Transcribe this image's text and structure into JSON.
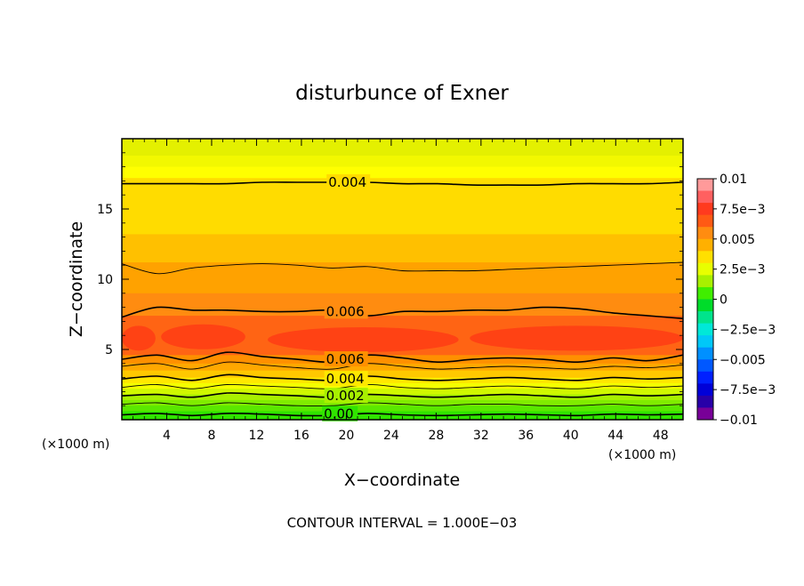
{
  "chart_data": {
    "type": "heatmap",
    "title": "disturbunce of Exner",
    "xlabel": "X−coordinate",
    "ylabel": "Z−coordinate",
    "x_unit": "(×1000 m)",
    "x_unit_right": "(×1000 m)",
    "xlim": [
      0,
      50
    ],
    "ylim": [
      0,
      20
    ],
    "x_ticks": [
      "4",
      "8",
      "12",
      "16",
      "20",
      "24",
      "28",
      "32",
      "36",
      "40",
      "44",
      "48"
    ],
    "x_tick_values": [
      4,
      8,
      12,
      16,
      20,
      24,
      28,
      32,
      36,
      40,
      44,
      48
    ],
    "y_ticks": [
      "5",
      "10",
      "15"
    ],
    "y_tick_values": [
      5,
      10,
      15
    ],
    "colorbar": {
      "ticks": [
        "0.01",
        "7.5e−3",
        "0.005",
        "2.5e−3",
        "0",
        "−2.5e−3",
        "−0.005",
        "−7.5e−3",
        "−0.01"
      ],
      "tick_values": [
        0.01,
        0.0075,
        0.005,
        0.0025,
        0,
        -0.0025,
        -0.005,
        -0.0075,
        -0.01
      ],
      "levels": [
        {
          "value": 0.0095,
          "color": "#ff9a9a"
        },
        {
          "value": 0.0085,
          "color": "#ff6060"
        },
        {
          "value": 0.0075,
          "color": "#ff3a1e"
        },
        {
          "value": 0.0065,
          "color": "#ff5a14"
        },
        {
          "value": 0.0055,
          "color": "#ff8c10"
        },
        {
          "value": 0.0045,
          "color": "#ffb000"
        },
        {
          "value": 0.0035,
          "color": "#ffe000"
        },
        {
          "value": 0.0025,
          "color": "#e8ff00"
        },
        {
          "value": 0.0015,
          "color": "#a8f000"
        },
        {
          "value": 0.0005,
          "color": "#40ee00"
        },
        {
          "value": -0.0005,
          "color": "#00dc2a"
        },
        {
          "value": -0.0015,
          "color": "#00e48c"
        },
        {
          "value": -0.0025,
          "color": "#00e8d8"
        },
        {
          "value": -0.0035,
          "color": "#00c8f8"
        },
        {
          "value": -0.0045,
          "color": "#0090ff"
        },
        {
          "value": -0.0055,
          "color": "#0058ff"
        },
        {
          "value": -0.0065,
          "color": "#0020ff"
        },
        {
          "value": -0.0075,
          "color": "#0000d8"
        },
        {
          "value": -0.0085,
          "color": "#2800a8"
        },
        {
          "value": -0.0095,
          "color": "#780098"
        }
      ]
    },
    "bands": [
      {
        "z_bottom": 18.8,
        "z_top": 20,
        "value": 0.0025,
        "color": "#e4f000"
      },
      {
        "z_bottom": 18.0,
        "z_top": 18.8,
        "value": 0.003,
        "color": "#f2f800"
      },
      {
        "z_bottom": 17.2,
        "z_top": 18.0,
        "value": 0.0035,
        "color": "#ffff00"
      },
      {
        "z_bottom": 13.2,
        "z_top": 17.2,
        "value": 0.004,
        "color": "#ffdc00"
      },
      {
        "z_bottom": 11.2,
        "z_top": 13.2,
        "value": 0.0045,
        "color": "#ffc000"
      },
      {
        "z_bottom": 9.0,
        "z_top": 11.2,
        "value": 0.005,
        "color": "#ffa200"
      },
      {
        "z_bottom": 7.4,
        "z_top": 9.0,
        "value": 0.0055,
        "color": "#ff8c10"
      },
      {
        "z_bottom": 4.6,
        "z_top": 7.4,
        "value": 0.0065,
        "color": "#ff6414"
      },
      {
        "z_bottom": 4.0,
        "z_top": 4.6,
        "value": 0.0055,
        "color": "#ff9000"
      },
      {
        "z_bottom": 3.5,
        "z_top": 4.0,
        "value": 0.005,
        "color": "#ffa800"
      },
      {
        "z_bottom": 3.0,
        "z_top": 3.5,
        "value": 0.0045,
        "color": "#ffc800"
      },
      {
        "z_bottom": 2.6,
        "z_top": 3.0,
        "value": 0.004,
        "color": "#ffe800"
      },
      {
        "z_bottom": 2.2,
        "z_top": 2.6,
        "value": 0.0035,
        "color": "#f4ff00"
      },
      {
        "z_bottom": 1.8,
        "z_top": 2.2,
        "value": 0.003,
        "color": "#d0f800"
      },
      {
        "z_bottom": 1.4,
        "z_top": 1.8,
        "value": 0.0025,
        "color": "#a8f000"
      },
      {
        "z_bottom": 1.0,
        "z_top": 1.4,
        "value": 0.002,
        "color": "#80ec00"
      },
      {
        "z_bottom": 0.6,
        "z_top": 1.0,
        "value": 0.0015,
        "color": "#5ae800"
      },
      {
        "z_bottom": 0.0,
        "z_top": 0.6,
        "value": 0.0005,
        "color": "#30e400"
      }
    ],
    "max_patches": [
      {
        "x_from": 0,
        "x_to": 3,
        "z_center": 5.8,
        "value": 0.0068
      },
      {
        "x_from": 3.5,
        "x_to": 11,
        "z_center": 5.9,
        "value": 0.0068
      },
      {
        "x_from": 13,
        "x_to": 30,
        "z_center": 5.7,
        "value": 0.0068
      },
      {
        "x_from": 31,
        "x_to": 50,
        "z_center": 5.8,
        "value": 0.0068
      }
    ],
    "contours": [
      {
        "value": 0.004,
        "z": [
          16.8,
          16.8,
          16.8,
          16.8,
          16.9,
          16.9,
          16.9,
          16.9,
          16.8,
          16.8,
          16.7,
          16.7,
          16.7,
          16.8,
          16.8,
          16.8,
          16.9
        ],
        "bold": true
      },
      {
        "value": 0.005,
        "z": [
          11.1,
          10.4,
          10.8,
          11.0,
          11.1,
          11.0,
          10.8,
          10.9,
          10.6,
          10.6,
          10.6,
          10.7,
          10.8,
          10.9,
          11.0,
          11.1,
          11.2
        ],
        "bold": false
      },
      {
        "value": 0.006,
        "z": [
          7.3,
          8.0,
          7.8,
          7.8,
          7.7,
          7.7,
          7.8,
          7.4,
          7.7,
          7.7,
          7.8,
          7.8,
          8.0,
          7.9,
          7.6,
          7.4,
          7.2
        ],
        "bold": true
      },
      {
        "value": 0.006,
        "z": [
          4.3,
          4.6,
          4.2,
          4.8,
          4.5,
          4.3,
          4.1,
          4.6,
          4.4,
          4.1,
          4.3,
          4.4,
          4.3,
          4.1,
          4.4,
          4.2,
          4.6
        ],
        "bold": true
      },
      {
        "value": 0.005,
        "z": [
          3.8,
          4.0,
          3.6,
          4.1,
          3.9,
          3.7,
          3.6,
          4.0,
          3.8,
          3.6,
          3.7,
          3.8,
          3.7,
          3.6,
          3.8,
          3.7,
          3.9
        ],
        "bold": false
      },
      {
        "value": 0.004,
        "z": [
          2.9,
          3.1,
          2.8,
          3.2,
          3.0,
          2.9,
          2.8,
          3.1,
          2.9,
          2.8,
          2.9,
          3.0,
          2.9,
          2.8,
          3.0,
          2.9,
          3.0
        ],
        "bold": true
      },
      {
        "value": 0.003,
        "z": [
          2.3,
          2.5,
          2.2,
          2.5,
          2.4,
          2.3,
          2.2,
          2.5,
          2.3,
          2.2,
          2.3,
          2.4,
          2.3,
          2.2,
          2.4,
          2.3,
          2.4
        ],
        "bold": false
      },
      {
        "value": 0.002,
        "z": [
          1.7,
          1.8,
          1.6,
          1.9,
          1.8,
          1.7,
          1.6,
          1.8,
          1.7,
          1.6,
          1.7,
          1.8,
          1.7,
          1.6,
          1.8,
          1.7,
          1.8
        ],
        "bold": true
      },
      {
        "value": 0.001,
        "z": [
          1.1,
          1.2,
          1.0,
          1.2,
          1.1,
          1.0,
          1.0,
          1.2,
          1.1,
          1.0,
          1.1,
          1.1,
          1.0,
          1.0,
          1.1,
          1.0,
          1.1
        ],
        "bold": false
      },
      {
        "value": 0.0,
        "z": [
          0.35,
          0.45,
          0.3,
          0.45,
          0.4,
          0.3,
          0.3,
          0.45,
          0.35,
          0.3,
          0.35,
          0.4,
          0.35,
          0.3,
          0.4,
          0.35,
          0.4
        ],
        "bold": true
      }
    ],
    "contour_labels": [
      {
        "text": "0.004",
        "x": 18.4,
        "z": 16.9
      },
      {
        "text": "0.006",
        "x": 18.2,
        "z": 7.7
      },
      {
        "text": "0.006",
        "x": 18.2,
        "z": 4.3
      },
      {
        "text": "0.004",
        "x": 18.2,
        "z": 2.9
      },
      {
        "text": "0.002",
        "x": 18.2,
        "z": 1.7
      },
      {
        "text": "0.00",
        "x": 18.0,
        "z": 0.4
      }
    ],
    "contour_interval_text": "CONTOUR INTERVAL = 1.000E−03"
  }
}
